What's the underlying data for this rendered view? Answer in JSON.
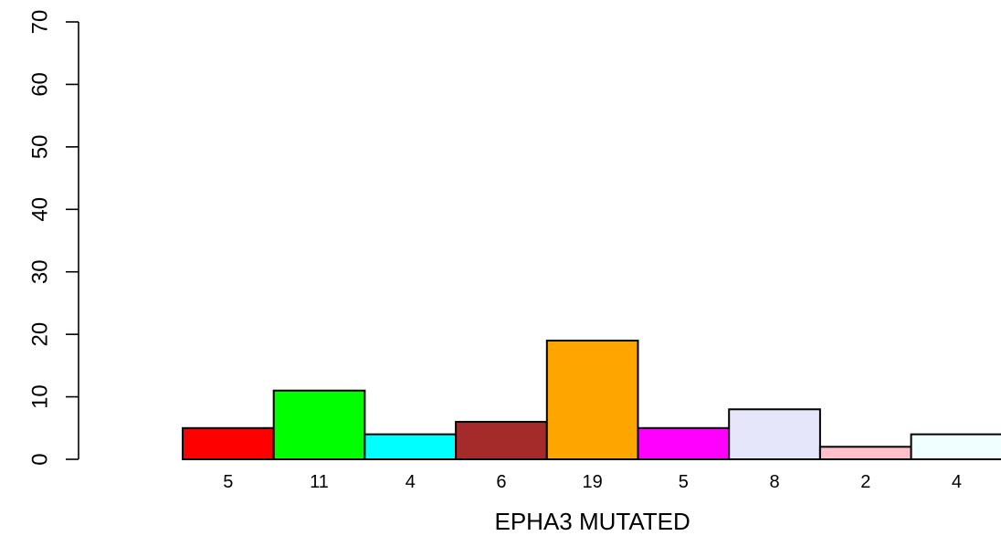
{
  "chart_data": {
    "type": "bar",
    "xlabel": "EPHA3 MUTATED",
    "ylabel": "",
    "ylim": [
      0,
      70
    ],
    "yticks": [
      "0",
      "10",
      "20",
      "30",
      "40",
      "50",
      "60",
      "70"
    ],
    "grid": false,
    "legend": "none",
    "categories": [
      "5",
      "11",
      "4",
      "6",
      "19",
      "5",
      "8",
      "2",
      "4"
    ],
    "values": [
      5,
      11,
      4,
      6,
      19,
      5,
      8,
      2,
      4
    ],
    "colors": [
      "#ff0000",
      "#00ff00",
      "#00ffff",
      "#a52a2a",
      "#ffa500",
      "#ff00ff",
      "#e6e6fa",
      "#ffc0cb",
      "#f0ffff"
    ]
  }
}
